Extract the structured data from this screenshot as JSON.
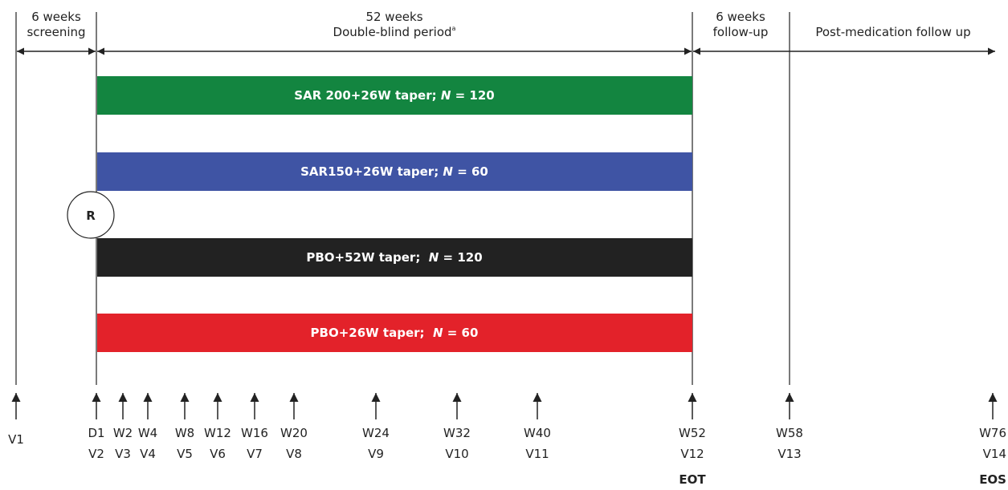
{
  "periods": [
    {
      "line1": "6 weeks",
      "line2": "screening"
    },
    {
      "line1": "52 weeks",
      "line2": "Double-blind period",
      "sup": "a"
    },
    {
      "line1": "6 weeks",
      "line2": "follow-up"
    },
    {
      "line1": "",
      "line2": "Post-medication follow up"
    }
  ],
  "arms": [
    {
      "label": "SAR 200+26W taper; ",
      "n_label": "N",
      "n_value": " = 120",
      "color": "#138540"
    },
    {
      "label": "SAR150+26W taper; ",
      "n_label": "N",
      "n_value": " = 60",
      "color": "#3f54a4"
    },
    {
      "label": "PBO+52W taper;  ",
      "n_label": "N",
      "n_value": " = 120",
      "color": "#222222"
    },
    {
      "label": "PBO+26W taper;  ",
      "n_label": "N",
      "n_value": " = 60",
      "color": "#e3222a"
    }
  ],
  "randomization_label": "R",
  "visits": [
    {
      "top": "",
      "bottom": "V1"
    },
    {
      "top": "D1",
      "bottom": "V2"
    },
    {
      "top": "W2",
      "bottom": "V3"
    },
    {
      "top": "W4",
      "bottom": "V4"
    },
    {
      "top": "W8",
      "bottom": "V5"
    },
    {
      "top": "W12",
      "bottom": "V6"
    },
    {
      "top": "W16",
      "bottom": "V7"
    },
    {
      "top": "W20",
      "bottom": "V8"
    },
    {
      "top": "W24",
      "bottom": "V9"
    },
    {
      "top": "W32",
      "bottom": "V10"
    },
    {
      "top": "W40",
      "bottom": "V11"
    },
    {
      "top": "W52",
      "bottom": "V12",
      "extra": "EOT"
    },
    {
      "top": "W58",
      "bottom": "V13"
    },
    {
      "top": "W76",
      "bottom": "V14",
      "extra": "EOS"
    }
  ]
}
